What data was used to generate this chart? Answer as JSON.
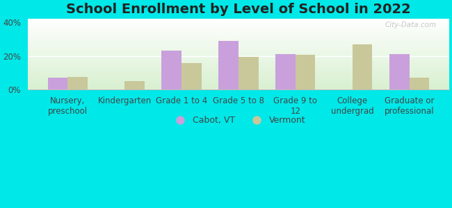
{
  "title": "School Enrollment by Level of School in 2022",
  "categories": [
    "Nursery,\npreschool",
    "Kindergarten",
    "Grade 1 to 4",
    "Grade 5 to 8",
    "Grade 9 to\n12",
    "College\nundergrad",
    "Graduate or\nprofessional"
  ],
  "cabot_values": [
    7,
    0,
    23,
    29,
    21,
    0,
    21
  ],
  "vermont_values": [
    7.5,
    5,
    15.5,
    19.5,
    20.5,
    27,
    7
  ],
  "cabot_color": "#c9a0dc",
  "vermont_color": "#c8c89a",
  "ylim": [
    0,
    42
  ],
  "yticks": [
    0,
    20,
    40
  ],
  "ytick_labels": [
    "0%",
    "20%",
    "40%"
  ],
  "background_color": "#00e8e8",
  "plot_bg_top": "#ffffff",
  "plot_bg_bottom": "#d8f0d0",
  "watermark": "City-Data.com",
  "legend_labels": [
    "Cabot, VT",
    "Vermont"
  ],
  "bar_width": 0.35,
  "title_fontsize": 14,
  "tick_fontsize": 8.5
}
